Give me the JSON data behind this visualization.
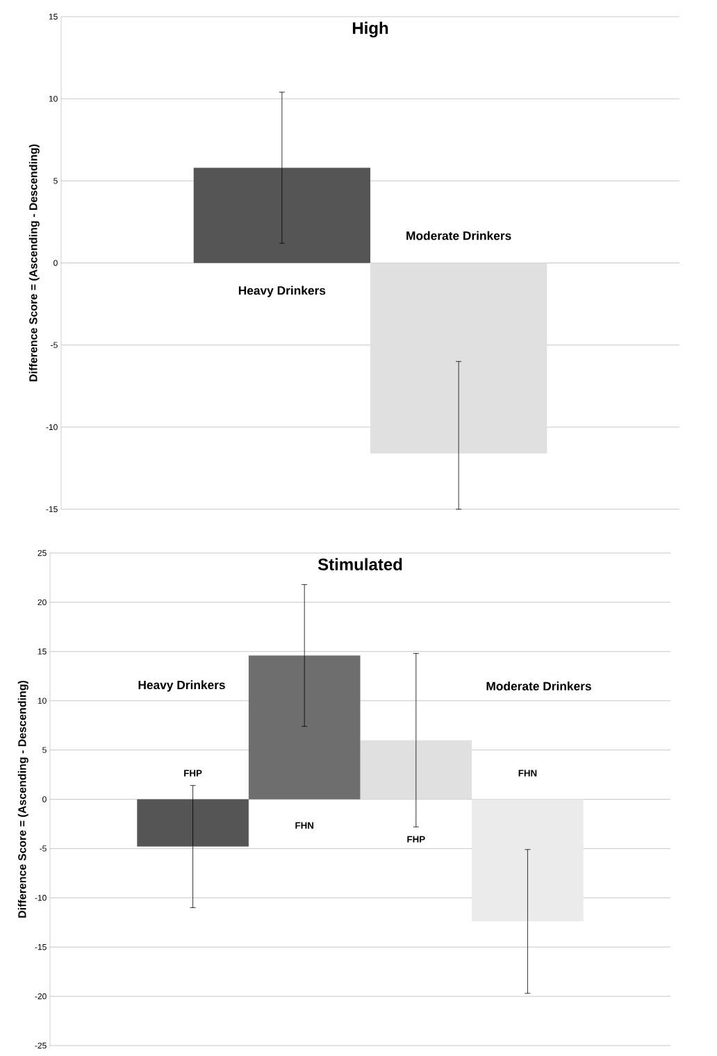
{
  "chart_data": [
    {
      "type": "bar",
      "title": "High",
      "ylabel": "Difference Score = (Ascending - Descending)",
      "categories": [
        "Heavy Drinkers",
        "Moderate Drinkers"
      ],
      "values": [
        5.8,
        -11.6
      ],
      "colors": [
        "#555555",
        "#e0e0e0"
      ],
      "errors": [
        4.6,
        [
          -15,
          -6.0
        ]
      ],
      "ylim": [
        -15,
        15
      ],
      "yticks": [
        -15,
        -10,
        -5,
        0,
        5,
        10,
        15
      ],
      "grid": "y",
      "tick_labels": "y"
    },
    {
      "type": "bar",
      "title": "Stimulated",
      "ylabel": "Difference Score = (Ascending - Descending)",
      "categories": [
        "Heavy Drinkers",
        "Moderate Drinkers"
      ],
      "series": [
        {
          "name": "FHP",
          "colors": [
            "#555555",
            "#e0e0e0"
          ],
          "values": [
            -4.8,
            6.0
          ],
          "errors": [
            6.2,
            8.8
          ]
        },
        {
          "name": "FHN",
          "colors": [
            "#6e6e6e",
            "#ebebeb"
          ],
          "values": [
            14.6,
            -12.4
          ],
          "errors": [
            7.2,
            7.3
          ]
        }
      ],
      "ylim": [
        -25,
        25
      ],
      "yticks": [
        -25,
        -20,
        -15,
        -10,
        -5,
        0,
        5,
        10,
        15,
        20,
        25
      ],
      "grid": "y",
      "tick_labels": "y"
    }
  ]
}
